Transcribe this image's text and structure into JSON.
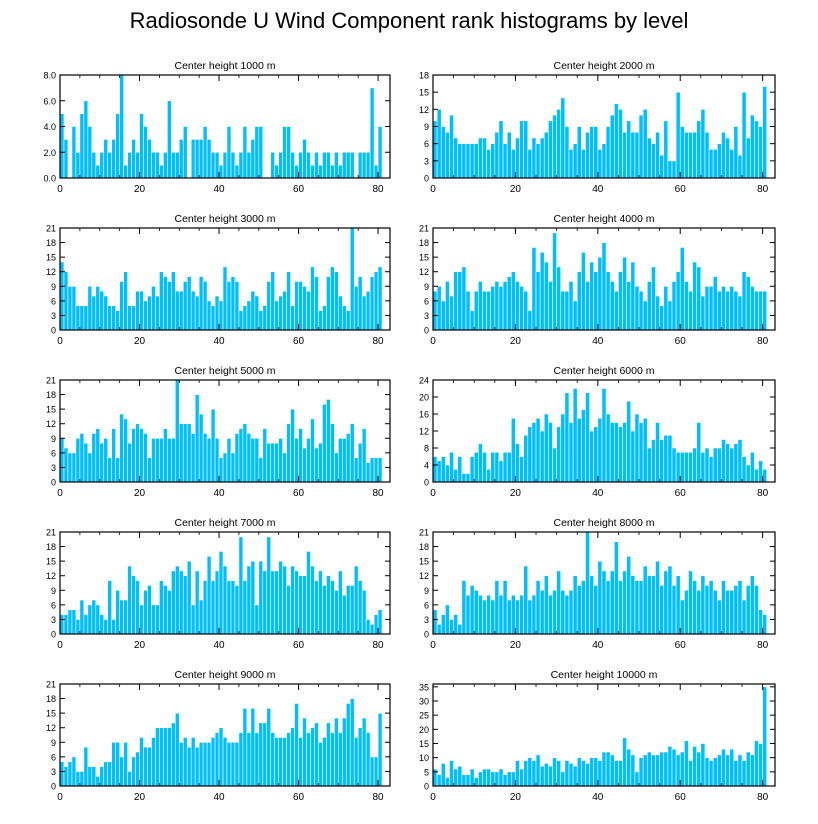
{
  "title": "Radiosonde U Wind Component rank histograms by level",
  "colors": {
    "bar": "#00BFFF",
    "bar_stroke": "#FFFFFF",
    "axis": "#000000"
  },
  "chart_data": [
    {
      "type": "bar",
      "title": "Center height 1000 m",
      "xlim": [
        0,
        83
      ],
      "ylim": [
        0,
        8
      ],
      "xticks": [
        0,
        20,
        40,
        60,
        80
      ],
      "yticks": [
        0,
        2,
        4,
        6,
        8
      ],
      "ytick_labels": [
        "0.0",
        "2.0",
        "4.0",
        "6.0",
        "8.0"
      ],
      "values": [
        5,
        3,
        0,
        4,
        2,
        5,
        6,
        4,
        2,
        1,
        2,
        3,
        2,
        3,
        5,
        8,
        1,
        2,
        3,
        2,
        5,
        4,
        3,
        2,
        2,
        1,
        2,
        6,
        2,
        2,
        3,
        4,
        0,
        3,
        3,
        3,
        4,
        3,
        2,
        2,
        1,
        2,
        4,
        2,
        1,
        2,
        4,
        2,
        3,
        4,
        4,
        0,
        0,
        2,
        1,
        2,
        4,
        4,
        2,
        1,
        2,
        3,
        2,
        1,
        2,
        1,
        2,
        2,
        1,
        2,
        1,
        2,
        2,
        2,
        0,
        2,
        2,
        2,
        7,
        1,
        4
      ]
    },
    {
      "type": "bar",
      "title": "Center height 2000 m",
      "xlim": [
        0,
        83
      ],
      "ylim": [
        0,
        18
      ],
      "xticks": [
        0,
        20,
        40,
        60,
        80
      ],
      "yticks": [
        0,
        3,
        6,
        9,
        12,
        15,
        18
      ],
      "ytick_labels": [
        "0",
        "3",
        "6",
        "9",
        "12",
        "15",
        "18"
      ],
      "values": [
        10,
        12,
        9,
        8,
        11,
        7,
        6,
        6,
        6,
        6,
        6,
        7,
        7,
        5,
        6,
        8,
        10,
        6,
        8,
        5,
        7,
        10,
        10,
        5,
        7,
        6,
        7,
        8,
        10,
        11,
        12,
        14,
        9,
        5,
        6,
        9,
        5,
        8,
        9,
        9,
        5,
        6,
        9,
        11,
        13,
        12,
        8,
        10,
        8,
        8,
        11,
        12,
        7,
        6,
        8,
        4,
        10,
        3,
        3,
        15,
        9,
        8,
        8,
        8,
        10,
        12,
        8,
        5,
        5,
        6,
        8,
        7,
        5,
        9,
        4,
        15,
        7,
        11,
        10,
        9,
        16
      ]
    },
    {
      "type": "bar",
      "title": "Center height 3000 m",
      "xlim": [
        0,
        83
      ],
      "ylim": [
        0,
        21
      ],
      "xticks": [
        0,
        20,
        40,
        60,
        80
      ],
      "yticks": [
        0,
        3,
        6,
        9,
        12,
        15,
        18,
        21
      ],
      "ytick_labels": [
        "0",
        "3",
        "6",
        "9",
        "12",
        "15",
        "18",
        "21"
      ],
      "values": [
        14,
        12,
        9,
        9,
        5,
        5,
        5,
        9,
        7,
        9,
        8,
        7,
        5,
        5,
        4,
        10,
        12,
        5,
        5,
        8,
        8,
        6,
        7,
        9,
        7,
        12,
        11,
        10,
        12,
        8,
        8,
        10,
        11,
        8,
        7,
        11,
        10,
        6,
        5,
        7,
        6,
        13,
        10,
        11,
        10,
        4,
        5,
        6,
        8,
        7,
        4,
        5,
        10,
        12,
        6,
        7,
        8,
        12,
        5,
        10,
        10,
        9,
        8,
        13,
        11,
        4,
        5,
        11,
        13,
        12,
        7,
        5,
        4,
        21,
        9,
        11,
        7,
        8,
        11,
        12,
        13
      ]
    },
    {
      "type": "bar",
      "title": "Center height 4000 m",
      "xlim": [
        0,
        83
      ],
      "ylim": [
        0,
        21
      ],
      "xticks": [
        0,
        20,
        40,
        60,
        80
      ],
      "yticks": [
        0,
        3,
        6,
        9,
        12,
        15,
        18,
        21
      ],
      "ytick_labels": [
        "0",
        "3",
        "6",
        "9",
        "12",
        "15",
        "18",
        "21"
      ],
      "values": [
        8,
        9,
        6,
        10,
        7,
        12,
        12,
        13,
        8,
        4,
        8,
        10,
        8,
        8,
        9,
        10,
        9,
        10,
        11,
        12,
        10,
        9,
        8,
        4,
        17,
        12,
        16,
        14,
        10,
        20,
        13,
        8,
        8,
        10,
        6,
        12,
        16,
        10,
        14,
        12,
        15,
        18,
        12,
        10,
        8,
        12,
        15,
        10,
        14,
        9,
        8,
        6,
        10,
        13,
        7,
        5,
        9,
        6,
        10,
        12,
        17,
        10,
        8,
        14,
        13,
        7,
        9,
        9,
        11,
        8,
        9,
        8,
        9,
        8,
        7,
        12,
        11,
        9,
        8,
        8,
        8
      ]
    },
    {
      "type": "bar",
      "title": "Center height 5000 m",
      "xlim": [
        0,
        83
      ],
      "ylim": [
        0,
        21
      ],
      "xticks": [
        0,
        20,
        40,
        60,
        80
      ],
      "yticks": [
        0,
        3,
        6,
        9,
        12,
        15,
        18,
        21
      ],
      "ytick_labels": [
        "0",
        "3",
        "6",
        "9",
        "12",
        "15",
        "18",
        "21"
      ],
      "values": [
        9,
        7,
        6,
        6,
        9,
        10,
        8,
        6,
        10,
        11,
        8,
        9,
        5,
        11,
        5,
        14,
        13,
        8,
        11,
        12,
        11,
        10,
        5,
        9,
        9,
        9,
        11,
        9,
        9,
        21,
        12,
        12,
        12,
        10,
        18,
        14,
        10,
        9,
        15,
        9,
        5,
        6,
        9,
        6,
        10,
        11,
        12,
        10,
        9,
        9,
        5,
        11,
        8,
        8,
        8,
        9,
        6,
        12,
        15,
        9,
        11,
        7,
        9,
        13,
        7,
        8,
        16,
        17,
        12,
        6,
        9,
        9,
        10,
        12,
        5,
        8,
        11,
        4,
        5,
        5,
        5
      ]
    },
    {
      "type": "bar",
      "title": "Center height 6000 m",
      "xlim": [
        0,
        83
      ],
      "ylim": [
        0,
        24
      ],
      "xticks": [
        0,
        20,
        40,
        60,
        80
      ],
      "yticks": [
        0,
        4,
        8,
        12,
        16,
        20,
        24
      ],
      "ytick_labels": [
        "0",
        "4",
        "8",
        "12",
        "16",
        "20",
        "24"
      ],
      "values": [
        6,
        5,
        6,
        4,
        7,
        3,
        6,
        2,
        2,
        6,
        7,
        9,
        7,
        3,
        7,
        7,
        5,
        7,
        7,
        15,
        9,
        6,
        11,
        13,
        14,
        15,
        12,
        16,
        14,
        8,
        13,
        16,
        21,
        14,
        22,
        15,
        17,
        21,
        12,
        13,
        15,
        22,
        16,
        14,
        14,
        13,
        14,
        19,
        12,
        16,
        14,
        15,
        8,
        10,
        14,
        10,
        11,
        11,
        8,
        7,
        7,
        7,
        7,
        8,
        14,
        7,
        8,
        6,
        8,
        8,
        10,
        9,
        8,
        9,
        10,
        6,
        4,
        7,
        3,
        5,
        3
      ]
    },
    {
      "type": "bar",
      "title": "Center height 7000 m",
      "xlim": [
        0,
        83
      ],
      "ylim": [
        0,
        21
      ],
      "xticks": [
        0,
        20,
        40,
        60,
        80
      ],
      "yticks": [
        0,
        3,
        6,
        9,
        12,
        15,
        18,
        21
      ],
      "ytick_labels": [
        "0",
        "3",
        "6",
        "9",
        "12",
        "15",
        "18",
        "21"
      ],
      "values": [
        4,
        4,
        5,
        5,
        3,
        7,
        4,
        6,
        7,
        6,
        4,
        3,
        11,
        3,
        9,
        7,
        7,
        14,
        12,
        11,
        6,
        9,
        10,
        6,
        6,
        11,
        10,
        9,
        13,
        14,
        13,
        12,
        15,
        6,
        13,
        7,
        11,
        16,
        11,
        13,
        17,
        14,
        11,
        11,
        10,
        20,
        11,
        14,
        15,
        6,
        15,
        13,
        20,
        13,
        13,
        15,
        14,
        10,
        14,
        13,
        12,
        12,
        17,
        14,
        11,
        13,
        10,
        12,
        11,
        9,
        13,
        8,
        10,
        10,
        14,
        11,
        9,
        3,
        2,
        4,
        5
      ]
    },
    {
      "type": "bar",
      "title": "Center height 8000 m",
      "xlim": [
        0,
        83
      ],
      "ylim": [
        0,
        21
      ],
      "xticks": [
        0,
        20,
        40,
        60,
        80
      ],
      "yticks": [
        0,
        3,
        6,
        9,
        12,
        15,
        18,
        21
      ],
      "ytick_labels": [
        "0",
        "3",
        "6",
        "9",
        "12",
        "15",
        "18",
        "21"
      ],
      "values": [
        5,
        2,
        4,
        6,
        3,
        4,
        2,
        11,
        8,
        10,
        9,
        8,
        7,
        8,
        7,
        11,
        8,
        11,
        7,
        8,
        7,
        8,
        14,
        7,
        8,
        11,
        9,
        12,
        8,
        9,
        13,
        9,
        8,
        9,
        12,
        10,
        11,
        21,
        12,
        10,
        15,
        13,
        11,
        13,
        19,
        11,
        13,
        16,
        12,
        11,
        11,
        14,
        12,
        12,
        15,
        10,
        13,
        14,
        10,
        12,
        7,
        9,
        13,
        11,
        9,
        12,
        10,
        11,
        9,
        7,
        11,
        9,
        9,
        10,
        11,
        7,
        10,
        12,
        10,
        5,
        4
      ]
    },
    {
      "type": "bar",
      "title": "Center height 9000 m",
      "xlim": [
        0,
        83
      ],
      "ylim": [
        0,
        21
      ],
      "xticks": [
        0,
        20,
        40,
        60,
        80
      ],
      "yticks": [
        0,
        3,
        6,
        9,
        12,
        15,
        18,
        21
      ],
      "ytick_labels": [
        "0",
        "3",
        "6",
        "9",
        "12",
        "15",
        "18",
        "21"
      ],
      "values": [
        5,
        4,
        5,
        6,
        3,
        3,
        8,
        4,
        4,
        2,
        4,
        5,
        5,
        9,
        9,
        6,
        9,
        3,
        6,
        7,
        10,
        8,
        8,
        10,
        12,
        12,
        12,
        12,
        13,
        15,
        9,
        10,
        8,
        10,
        8,
        9,
        9,
        9,
        10,
        11,
        12,
        10,
        9,
        9,
        9,
        11,
        16,
        11,
        16,
        11,
        13,
        13,
        16,
        11,
        10,
        10,
        10,
        11,
        12,
        17,
        10,
        14,
        11,
        12,
        13,
        9,
        10,
        13,
        11,
        14,
        11,
        14,
        17,
        18,
        10,
        12,
        14,
        11,
        6,
        6,
        15
      ]
    },
    {
      "type": "bar",
      "title": "Center height 10000 m",
      "xlim": [
        0,
        83
      ],
      "ylim": [
        0,
        36
      ],
      "xticks": [
        0,
        20,
        40,
        60,
        80
      ],
      "yticks": [
        0,
        5,
        10,
        15,
        20,
        25,
        30,
        35
      ],
      "ytick_labels": [
        "0",
        "5",
        "10",
        "15",
        "20",
        "25",
        "30",
        "35"
      ],
      "values": [
        6,
        4,
        8,
        3,
        9,
        6,
        7,
        4,
        4,
        6,
        3,
        5,
        6,
        6,
        5,
        5,
        6,
        4,
        5,
        5,
        9,
        6,
        9,
        10,
        9,
        11,
        7,
        8,
        7,
        10,
        9,
        5,
        9,
        8,
        7,
        10,
        9,
        8,
        10,
        10,
        9,
        12,
        12,
        11,
        9,
        9,
        17,
        13,
        11,
        5,
        10,
        11,
        12,
        11,
        11,
        12,
        12,
        14,
        13,
        11,
        12,
        16,
        9,
        14,
        12,
        15,
        10,
        9,
        10,
        11,
        13,
        11,
        13,
        9,
        11,
        9,
        12,
        11,
        16,
        15,
        35
      ]
    }
  ]
}
